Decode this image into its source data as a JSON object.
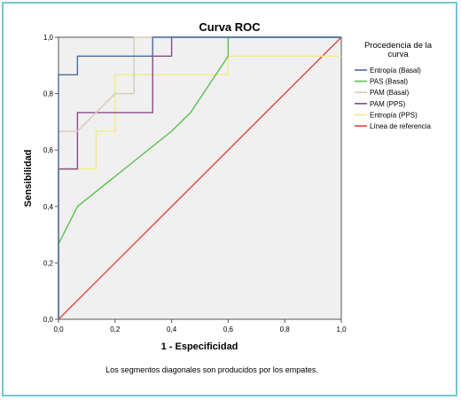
{
  "chart_data": {
    "type": "line",
    "title": "Curva ROC",
    "xlabel": "1 - Especificidad",
    "ylabel": "Sensibilidad",
    "xlim": [
      0,
      1
    ],
    "ylim": [
      0,
      1
    ],
    "xticks": [
      "0,0",
      "0,2",
      "0,4",
      "0,6",
      "0,8",
      "1,0"
    ],
    "yticks": [
      "0,0",
      "0,2",
      "0,4",
      "0,6",
      "0,8",
      "1,0"
    ],
    "grid": false,
    "legend_title": "Procedencia de la curva",
    "legend_placement": "right",
    "footnote": "Los segmentos diagonales son producidos por los empates.",
    "series": [
      {
        "name": "Entropía (Basal)",
        "color": "#4a6aa8",
        "x": [
          0,
          0,
          0.067,
          0.067,
          0.333,
          0.333,
          1
        ],
        "y": [
          0,
          0.867,
          0.867,
          0.933,
          0.933,
          1,
          1
        ]
      },
      {
        "name": "PAS (Basal)",
        "color": "#5cbf50",
        "x": [
          0,
          0,
          0.067,
          0.4,
          0.467,
          0.6,
          0.6,
          1
        ],
        "y": [
          0,
          0.267,
          0.4,
          0.667,
          0.733,
          0.933,
          1,
          1
        ]
      },
      {
        "name": "PAM (Basal)",
        "color": "#d6ccb4",
        "x": [
          0,
          0,
          0.067,
          0.2,
          0.2,
          0.267,
          0.267,
          1
        ],
        "y": [
          0,
          0.667,
          0.667,
          0.8,
          0.8,
          0.8,
          1,
          1
        ]
      },
      {
        "name": "PAM (PPS)",
        "color": "#8a4a8a",
        "x": [
          0,
          0,
          0.067,
          0.067,
          0.333,
          0.333,
          0.4,
          0.4,
          1
        ],
        "y": [
          0,
          0.533,
          0.533,
          0.733,
          0.733,
          0.933,
          0.933,
          1,
          1
        ]
      },
      {
        "name": "Entropía (PPS)",
        "color": "#f2ec86",
        "x": [
          0,
          0,
          0.133,
          0.133,
          0.2,
          0.2,
          0.6,
          0.6,
          1
        ],
        "y": [
          0,
          0.533,
          0.533,
          0.667,
          0.667,
          0.867,
          0.867,
          0.933,
          0.933
        ]
      },
      {
        "name": "Línea de referencia",
        "color": "#e3453a",
        "x": [
          0,
          1
        ],
        "y": [
          0,
          1
        ]
      }
    ]
  }
}
